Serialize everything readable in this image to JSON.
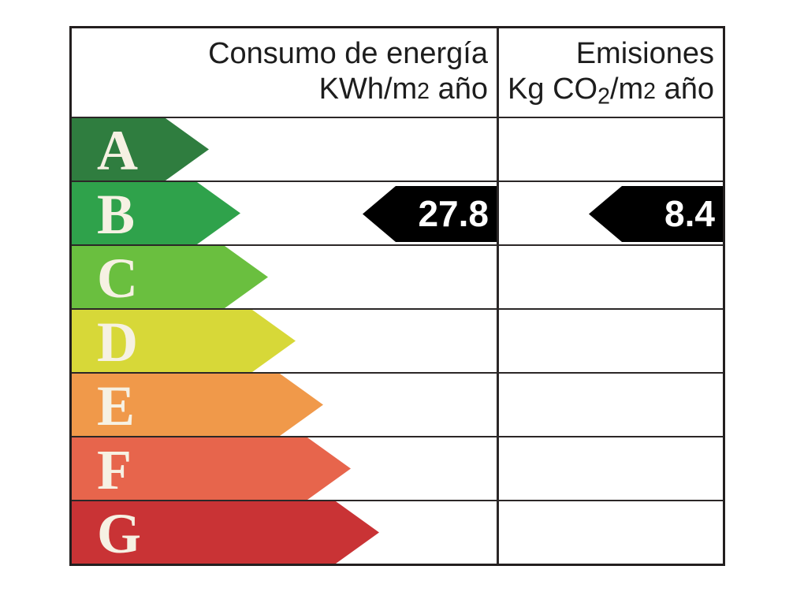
{
  "table": {
    "border_color": "#231f1f",
    "grid_color": "#2b2727",
    "headers": {
      "consumption": {
        "line1": "Consumo de energía",
        "unit_pre": "KWh/m",
        "unit_exp": "2",
        "unit_post": " año"
      },
      "emissions": {
        "line1": "Emisiones",
        "unit_pre": "Kg CO",
        "unit_sub": "2",
        "unit_mid": "/m",
        "unit_exp": "2",
        "unit_post": " año"
      }
    },
    "scale": [
      {
        "label": "A",
        "color": "#2f7d3f",
        "tip": 174
      },
      {
        "label": "B",
        "color": "#2fa24b",
        "tip": 214
      },
      {
        "label": "C",
        "color": "#6abf3f",
        "tip": 249
      },
      {
        "label": "D",
        "color": "#d7d838",
        "tip": 284
      },
      {
        "label": "E",
        "color": "#f0994a",
        "tip": 319
      },
      {
        "label": "F",
        "color": "#e7654c",
        "tip": 354
      },
      {
        "label": "G",
        "color": "#c93335",
        "tip": 390
      }
    ],
    "letter_color": "#f6f1e3",
    "values": {
      "rating_row": "B",
      "consumption": "27.8",
      "emissions": "8.4",
      "marker_color": "#000000",
      "marker_text_color": "#ffffff"
    }
  },
  "chart_data": {
    "type": "table",
    "title": "Energy efficiency rating label",
    "columns": [
      "Consumo de energía KWh/m2 año",
      "Emisiones Kg CO2/m2 año"
    ],
    "scale": [
      "A",
      "B",
      "C",
      "D",
      "E",
      "F",
      "G"
    ],
    "rating": "B",
    "consumption_kwh_m2_year": 27.8,
    "emissions_kg_co2_m2_year": 8.4,
    "legend_position": "none",
    "grid": true
  }
}
